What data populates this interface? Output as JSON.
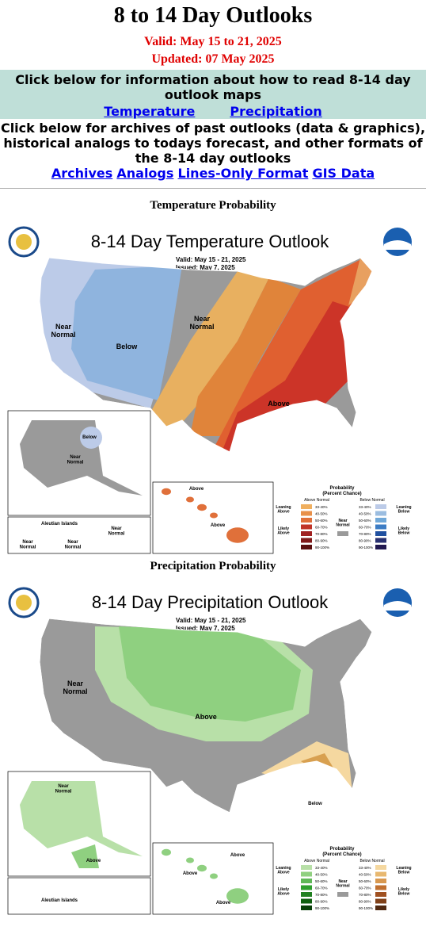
{
  "header": {
    "title": "8 to 14 Day Outlooks",
    "valid": "Valid: May 15 to 21, 2025",
    "updated": "Updated: 07 May 2025"
  },
  "info": {
    "text": "Click below for information about how to read 8-14 day outlook maps",
    "links": [
      "Temperature",
      "Precipitation"
    ]
  },
  "archives": {
    "text": "Click below for archives of past outlooks (data & graphics), historical analogs to todays forecast, and other formats of the 8-14 day outlooks",
    "links": [
      "Archives",
      "Analogs",
      "Lines-Only Format",
      "GIS Data"
    ]
  },
  "maps": [
    {
      "heading": "Temperature Probability",
      "title": "8-14 Day Temperature Outlook",
      "valid": "Valid:  May 15 - 21, 2025",
      "issued": "Issued:  May 7, 2025",
      "labels": [
        [
          "Near",
          "Normal"
        ],
        [
          "Below"
        ],
        [
          "Near",
          "Normal"
        ],
        [
          "Above"
        ],
        [
          "Below"
        ],
        [
          "Near",
          "Normal"
        ],
        [
          "Aleutian Islands"
        ],
        [
          "Near",
          "Normal"
        ],
        [
          "Near",
          "Normal"
        ],
        [
          "Near",
          "Normal"
        ],
        [
          "Above"
        ],
        [
          "Above"
        ]
      ],
      "legend": {
        "title": "Probability",
        "subtitle": "(Percent Chance)",
        "above_header": "Above Normal",
        "below_header": "Below Normal",
        "near": [
          "Near",
          "Normal"
        ],
        "leaning_above": [
          "Leaning",
          "Above"
        ],
        "likely_above": [
          "Likely",
          "Above"
        ],
        "leaning_below": [
          "Leaning",
          "Below"
        ],
        "likely_below": [
          "Likely",
          "Below"
        ],
        "ranges": [
          "33-40%",
          "40-50%",
          "50-60%",
          "60-70%",
          "70-80%",
          "80-90%",
          "90-100%"
        ]
      }
    },
    {
      "heading": "Precipitation Probability",
      "title": "8-14 Day Precipitation Outlook",
      "valid": "Valid:  May 15 - 21, 2025",
      "issued": "Issued:  May 7, 2025",
      "labels": [
        [
          "Near",
          "Normal"
        ],
        [
          "Above"
        ],
        [
          "Below"
        ],
        [
          "Near",
          "Normal"
        ],
        [
          "Above"
        ],
        [
          "Aleutian Islands"
        ],
        [
          "Above"
        ],
        [
          "Above"
        ],
        [
          "Above"
        ]
      ],
      "legend": {
        "title": "Probability",
        "subtitle": "(Percent Chance)",
        "above_header": "Above Normal",
        "below_header": "Below Normal",
        "near": [
          "Near",
          "Normal"
        ],
        "leaning_above": [
          "Leaning",
          "Above"
        ],
        "likely_above": [
          "Likely",
          "Above"
        ],
        "leaning_below": [
          "Leaning",
          "Below"
        ],
        "likely_below": [
          "Likely",
          "Below"
        ],
        "ranges": [
          "33-40%",
          "40-50%",
          "50-60%",
          "60-70%",
          "70-80%",
          "80-90%",
          "90-100%"
        ]
      }
    }
  ]
}
